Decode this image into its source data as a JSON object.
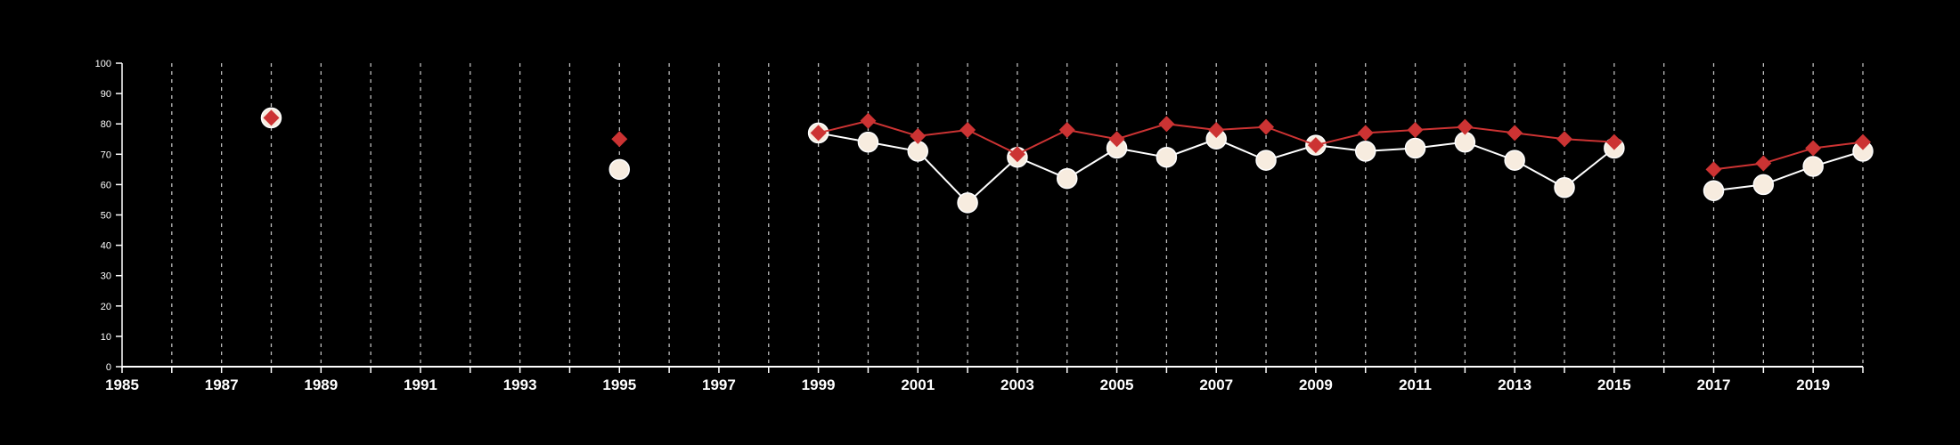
{
  "chart_data": {
    "type": "line",
    "title": "",
    "xlabel": "",
    "ylabel": "",
    "xlim": [
      1985,
      2020
    ],
    "ylim": [
      0,
      100
    ],
    "x_ticks": [
      1985,
      1986,
      1987,
      1988,
      1989,
      1990,
      1991,
      1992,
      1993,
      1994,
      1995,
      1996,
      1997,
      1998,
      1999,
      2000,
      2001,
      2002,
      2003,
      2004,
      2005,
      2006,
      2007,
      2008,
      2009,
      2010,
      2011,
      2012,
      2013,
      2014,
      2015,
      2016,
      2017,
      2018,
      2019,
      2020
    ],
    "x_tick_labels": [
      "1985",
      "1987",
      "1989",
      "1991",
      "1993",
      "1995",
      "1997",
      "1999",
      "2001",
      "2003",
      "2005",
      "2007",
      "2009",
      "2011",
      "2013",
      "2015",
      "2017",
      "2019"
    ],
    "y_ticks": [
      "0",
      "10",
      "20",
      "30",
      "40",
      "50",
      "60",
      "70",
      "80",
      "90",
      "100"
    ],
    "grid": "vertical dashed",
    "legend": "none",
    "colors": {
      "background": "#000000",
      "axis": "#ffffff",
      "grid": "#bdbdbd",
      "series_red": "#cc3333",
      "series_cream": "#f7ecdf"
    },
    "series": [
      {
        "color": "#f7ecdf",
        "marker": "circle",
        "points": [
          [
            1988,
            82
          ],
          [
            1995,
            65
          ],
          [
            1999,
            77
          ],
          [
            2000,
            74
          ],
          [
            2001,
            71
          ],
          [
            2002,
            54
          ],
          [
            2003,
            69
          ],
          [
            2004,
            62
          ],
          [
            2005,
            72
          ],
          [
            2006,
            69
          ],
          [
            2007,
            75
          ],
          [
            2008,
            68
          ],
          [
            2009,
            73
          ],
          [
            2010,
            71
          ],
          [
            2011,
            72
          ],
          [
            2012,
            74
          ],
          [
            2013,
            68
          ],
          [
            2014,
            59
          ],
          [
            2015,
            72
          ],
          [
            2017,
            58
          ],
          [
            2018,
            60
          ],
          [
            2019,
            66
          ],
          [
            2020,
            71
          ]
        ]
      },
      {
        "color": "#cc3333",
        "marker": "diamond",
        "points": [
          [
            1988,
            82
          ],
          [
            1995,
            75
          ],
          [
            1999,
            77
          ],
          [
            2000,
            81
          ],
          [
            2001,
            76
          ],
          [
            2002,
            78
          ],
          [
            2003,
            70
          ],
          [
            2004,
            78
          ],
          [
            2005,
            75
          ],
          [
            2006,
            80
          ],
          [
            2007,
            78
          ],
          [
            2008,
            79
          ],
          [
            2009,
            73
          ],
          [
            2010,
            77
          ],
          [
            2011,
            78
          ],
          [
            2012,
            79
          ],
          [
            2013,
            77
          ],
          [
            2014,
            75
          ],
          [
            2015,
            74
          ],
          [
            2017,
            65
          ],
          [
            2018,
            67
          ],
          [
            2019,
            72
          ],
          [
            2020,
            74
          ]
        ]
      }
    ]
  }
}
